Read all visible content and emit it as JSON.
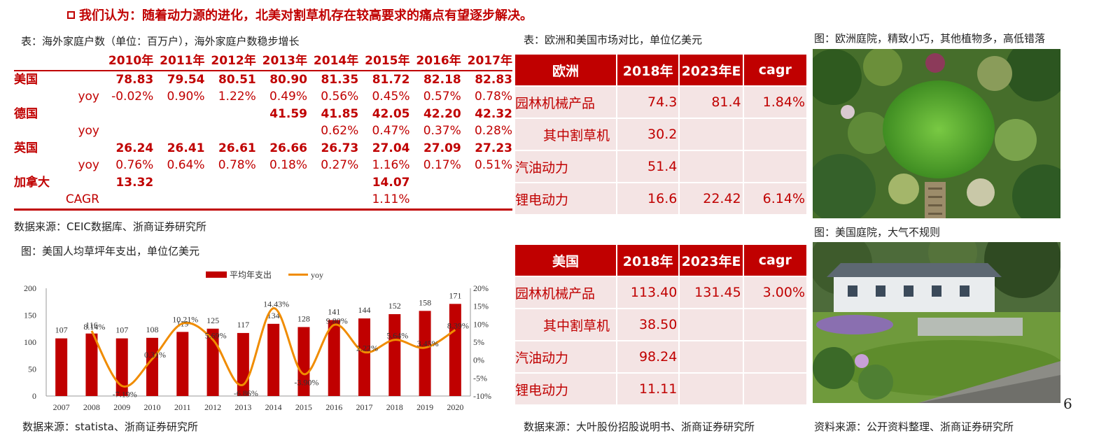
{
  "headline": "我们认为：随着动力源的进化，北美对割草机存在较高要求的痛点有望逐步解决。",
  "household": {
    "caption": "表：海外家庭户数（单位：百万户），海外家庭户数稳步增长",
    "years": [
      "2010年",
      "2011年",
      "2012年",
      "2013年",
      "2014年",
      "2015年",
      "2016年",
      "2017年"
    ],
    "rows": [
      {
        "country": "美国",
        "values": [
          "78.83",
          "79.54",
          "80.51",
          "80.90",
          "81.35",
          "81.72",
          "82.18",
          "82.83"
        ]
      },
      {
        "label": "yoy",
        "values": [
          "-0.02%",
          "0.90%",
          "1.22%",
          "0.49%",
          "0.56%",
          "0.45%",
          "0.57%",
          "0.78%"
        ]
      },
      {
        "country": "德国",
        "values": [
          "",
          "",
          "",
          "41.59",
          "41.85",
          "42.05",
          "42.20",
          "42.32"
        ]
      },
      {
        "label": "yoy",
        "values": [
          "",
          "",
          "",
          "",
          "0.62%",
          "0.47%",
          "0.37%",
          "0.28%"
        ]
      },
      {
        "country": "英国",
        "values": [
          "26.24",
          "26.41",
          "26.61",
          "26.66",
          "26.73",
          "27.04",
          "27.09",
          "27.23"
        ]
      },
      {
        "label": "yoy",
        "values": [
          "0.76%",
          "0.64%",
          "0.78%",
          "0.18%",
          "0.27%",
          "1.16%",
          "0.17%",
          "0.51%"
        ]
      },
      {
        "country": "加拿大",
        "values": [
          "13.32",
          "",
          "",
          "",
          "",
          "14.07",
          "",
          ""
        ]
      },
      {
        "label": "CAGR",
        "values": [
          "",
          "",
          "",
          "",
          "",
          "1.11%",
          "",
          ""
        ]
      }
    ],
    "source": "数据来源：CEIC数据库、浙商证券研究所"
  },
  "lawn_chart": {
    "caption": "图：美国人均草坪年支出，单位亿美元",
    "source": "数据来源：statista、浙商证券研究所"
  },
  "chart_data": {
    "type": "bar",
    "categories": [
      "2007",
      "2008",
      "2009",
      "2010",
      "2011",
      "2012",
      "2013",
      "2014",
      "2015",
      "2016",
      "2017",
      "2018",
      "2019",
      "2020"
    ],
    "series": [
      {
        "name": "平均年支出",
        "type": "bar",
        "axis": "left",
        "color": "#c00000",
        "values": [
          107,
          116,
          107,
          108,
          119,
          125,
          117,
          134,
          128,
          141,
          144,
          152,
          158,
          171
        ]
      },
      {
        "name": "yoy",
        "type": "line",
        "axis": "right",
        "color": "#f08c00",
        "values": [
          null,
          8.14,
          -7.19,
          0.31,
          10.21,
          5.69,
          -6.86,
          14.43,
          -3.9,
          9.8,
          2.22,
          5.64,
          3.45,
          8.39
        ]
      }
    ],
    "bar_labels": [
      "107",
      "116",
      "107",
      "108",
      "119",
      "125",
      "117",
      "134",
      "128",
      "141",
      "144",
      "152",
      "158",
      "171"
    ],
    "line_labels": [
      "",
      "8.14%",
      "-7.19%",
      "0.31%",
      "10.21%",
      "5.69%",
      "-6.86%",
      "14.43%",
      "-3.90%",
      "9.80%",
      "2.22%",
      "5.64%",
      "3.45%",
      "8.39%"
    ],
    "ylim_left": [
      0,
      200
    ],
    "yticks_left": [
      "0",
      "50",
      "100",
      "150",
      "200"
    ],
    "ylim_right": [
      -10,
      20
    ],
    "yticks_right": [
      "-10%",
      "-5%",
      "0%",
      "5%",
      "10%",
      "15%",
      "20%"
    ],
    "legend": "top-center",
    "grid": false
  },
  "europe_table": {
    "caption": "表：欧洲和美国市场对比，单位亿美元",
    "headers": [
      "欧洲",
      "2018年",
      "2023年E",
      "cagr"
    ],
    "rows": [
      [
        "园林机械产品",
        "74.3",
        "81.4",
        "1.84%"
      ],
      [
        "其中割草机",
        "30.2",
        "",
        ""
      ],
      [
        "汽油动力",
        "51.4",
        "",
        ""
      ],
      [
        "锂电动力",
        "16.6",
        "22.42",
        "6.14%"
      ]
    ]
  },
  "us_table": {
    "headers": [
      "美国",
      "2018年",
      "2023年E",
      "cagr"
    ],
    "rows": [
      [
        "园林机械产品",
        "113.40",
        "131.45",
        "3.00%"
      ],
      [
        "其中割草机",
        "38.50",
        "",
        ""
      ],
      [
        "汽油动力",
        "98.24",
        "",
        ""
      ],
      [
        "锂电动力",
        "11.11",
        "",
        ""
      ]
    ],
    "source": "数据来源：大叶股份招股说明书、浙商证券研究所"
  },
  "photos": {
    "europe_caption": "图：欧洲庭院，精致小巧，其他植物多，高低错落",
    "us_caption": "图：美国庭院，大气不规则",
    "source": "资料来源：公开资料整理、浙商证券研究所"
  },
  "page_number": "6"
}
